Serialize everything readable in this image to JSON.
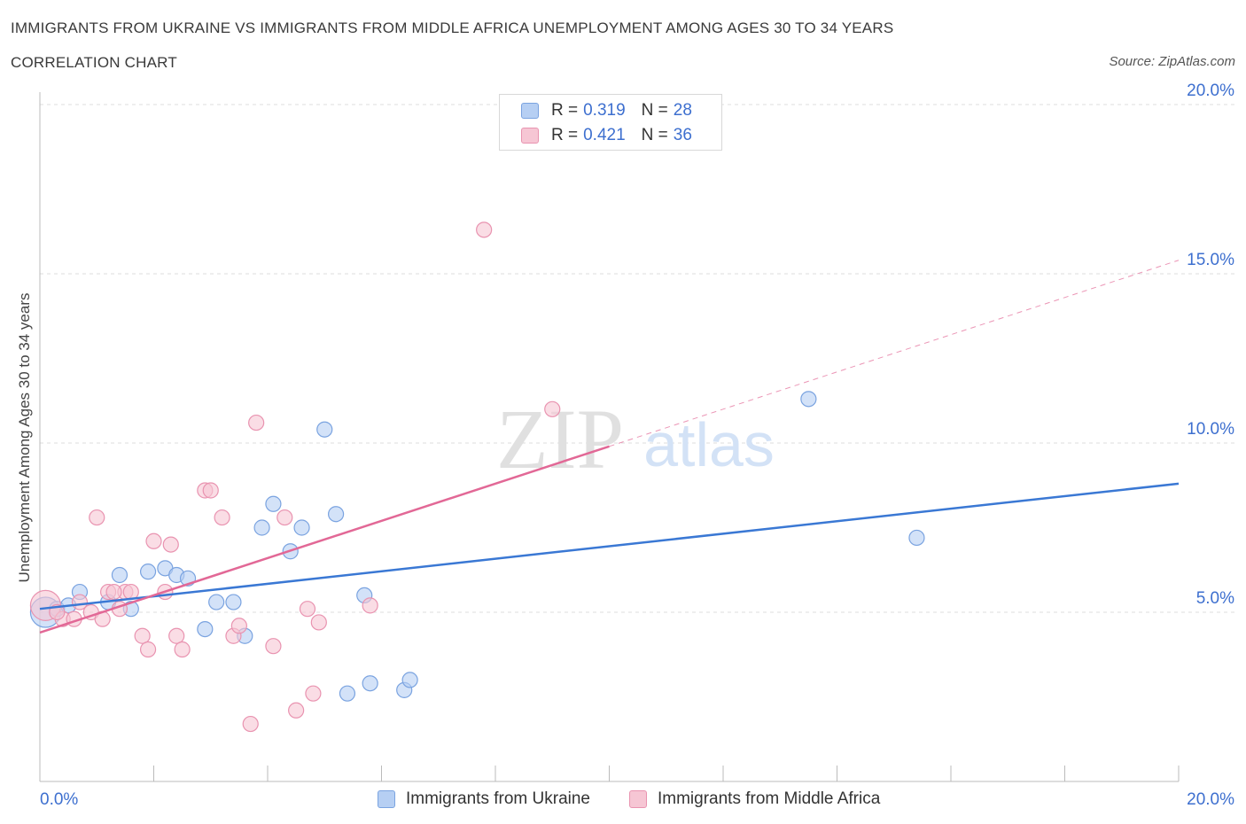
{
  "title": "IMMIGRANTS FROM UKRAINE VS IMMIGRANTS FROM MIDDLE AFRICA UNEMPLOYMENT AMONG AGES 30 TO 34 YEARS",
  "subtitle": "CORRELATION CHART",
  "source": "Source: ZipAtlas.com",
  "watermark": {
    "zip": "ZIP",
    "atlas": "atlas"
  },
  "colors": {
    "ukraine_fill": "#b6cff3",
    "ukraine_stroke": "#7aa3e0",
    "ukraine_line": "#3a78d4",
    "africa_fill": "#f6c6d4",
    "africa_stroke": "#e993b0",
    "africa_line": "#e26896",
    "tick_label": "#3d6fcf",
    "grid": "#dddddd"
  },
  "legend": {
    "rows": [
      {
        "r_label": "R =",
        "r_value": "0.319",
        "n_label": "N =",
        "n_value": "28"
      },
      {
        "r_label": "R =",
        "r_value": "0.421",
        "n_label": "N =",
        "n_value": "36"
      }
    ]
  },
  "bottom_legend": [
    "Immigrants from Ukraine",
    "Immigrants from Middle Africa"
  ],
  "chart_data": {
    "type": "scatter",
    "ylabel": "Unemployment Among Ages 30 to 34 years",
    "xlabel": "",
    "xlim": [
      0,
      20
    ],
    "ylim": [
      0,
      20
    ],
    "x_tick_labels": [
      "0.0%",
      "20.0%"
    ],
    "y_ticks": [
      5,
      10,
      15,
      20
    ],
    "y_tick_labels": [
      "5.0%",
      "10.0%",
      "15.0%",
      "20.0%"
    ],
    "grid": true,
    "series": [
      {
        "name": "Immigrants from Ukraine",
        "points": [
          [
            0.1,
            5.0
          ],
          [
            0.3,
            5.1
          ],
          [
            0.7,
            5.6
          ],
          [
            1.2,
            5.3
          ],
          [
            1.4,
            6.1
          ],
          [
            1.6,
            5.1
          ],
          [
            1.9,
            6.2
          ],
          [
            2.2,
            6.3
          ],
          [
            2.4,
            6.1
          ],
          [
            2.6,
            6.0
          ],
          [
            2.9,
            4.5
          ],
          [
            3.1,
            5.3
          ],
          [
            3.4,
            5.3
          ],
          [
            3.6,
            4.3
          ],
          [
            3.9,
            7.5
          ],
          [
            4.1,
            8.2
          ],
          [
            4.4,
            6.8
          ],
          [
            4.6,
            7.5
          ],
          [
            5.0,
            10.4
          ],
          [
            5.2,
            7.9
          ],
          [
            5.4,
            2.6
          ],
          [
            5.7,
            5.5
          ],
          [
            5.8,
            2.9
          ],
          [
            6.4,
            2.7
          ],
          [
            6.5,
            3.0
          ],
          [
            13.5,
            11.3
          ],
          [
            15.4,
            7.2
          ],
          [
            0.5,
            5.2
          ]
        ],
        "trend": {
          "x": [
            0,
            20
          ],
          "y": [
            5.1,
            8.8
          ]
        }
      },
      {
        "name": "Immigrants from Middle Africa",
        "points": [
          [
            0.1,
            5.2
          ],
          [
            0.4,
            4.8
          ],
          [
            0.7,
            5.3
          ],
          [
            0.9,
            5.0
          ],
          [
            1.0,
            7.8
          ],
          [
            1.1,
            4.8
          ],
          [
            1.2,
            5.6
          ],
          [
            1.4,
            5.1
          ],
          [
            1.5,
            5.6
          ],
          [
            1.6,
            5.6
          ],
          [
            1.8,
            4.3
          ],
          [
            1.9,
            3.9
          ],
          [
            2.0,
            7.1
          ],
          [
            2.2,
            5.6
          ],
          [
            2.3,
            7.0
          ],
          [
            2.4,
            4.3
          ],
          [
            2.5,
            3.9
          ],
          [
            2.9,
            8.6
          ],
          [
            3.0,
            8.6
          ],
          [
            3.2,
            7.8
          ],
          [
            3.4,
            4.3
          ],
          [
            3.5,
            4.6
          ],
          [
            3.7,
            1.7
          ],
          [
            3.8,
            10.6
          ],
          [
            4.1,
            4.0
          ],
          [
            4.3,
            7.8
          ],
          [
            4.5,
            2.1
          ],
          [
            4.7,
            5.1
          ],
          [
            4.8,
            2.6
          ],
          [
            4.9,
            4.7
          ],
          [
            5.8,
            5.2
          ],
          [
            7.8,
            16.3
          ],
          [
            9.0,
            11.0
          ],
          [
            0.6,
            4.8
          ],
          [
            0.3,
            5.0
          ],
          [
            1.3,
            5.6
          ]
        ],
        "trend": {
          "x": [
            0,
            10
          ],
          "y": [
            4.4,
            9.9
          ]
        },
        "trend_extension": {
          "x": [
            10,
            20
          ],
          "y": [
            9.9,
            15.4
          ]
        }
      }
    ]
  }
}
